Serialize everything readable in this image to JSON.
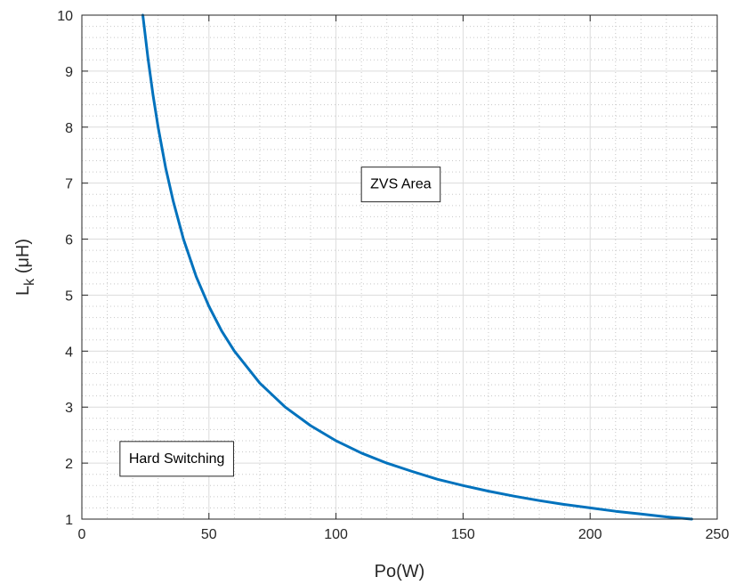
{
  "chart_data": {
    "type": "line",
    "xlabel": "Po(W)",
    "ylabel_main": "L",
    "ylabel_sub": "k",
    "ylabel_rest": " (μH)",
    "xlim": [
      0,
      250
    ],
    "ylim": [
      1,
      10
    ],
    "xticks": [
      0,
      50,
      100,
      150,
      200,
      250
    ],
    "yticks": [
      1,
      2,
      3,
      4,
      5,
      6,
      7,
      8,
      9,
      10
    ],
    "grid": true,
    "minor_grid": true,
    "series": [
      {
        "color": "#0072BD",
        "x": [
          24,
          26,
          28,
          30,
          33,
          36,
          40,
          45,
          50,
          55,
          60,
          70,
          80,
          90,
          100,
          110,
          120,
          130,
          140,
          150,
          160,
          170,
          180,
          190,
          200,
          210,
          220,
          230,
          240
        ],
        "y": [
          10.0,
          9.23,
          8.57,
          8.0,
          7.27,
          6.67,
          6.0,
          5.33,
          4.8,
          4.36,
          4.0,
          3.43,
          3.0,
          2.67,
          2.4,
          2.18,
          2.0,
          1.85,
          1.71,
          1.6,
          1.5,
          1.41,
          1.33,
          1.26,
          1.2,
          1.14,
          1.09,
          1.04,
          1.0
        ]
      }
    ],
    "annotations": [
      {
        "text": "ZVS Area",
        "x": 110,
        "y": 7.0
      },
      {
        "text": "Hard Switching",
        "x": 15,
        "y": 2.1
      }
    ]
  }
}
